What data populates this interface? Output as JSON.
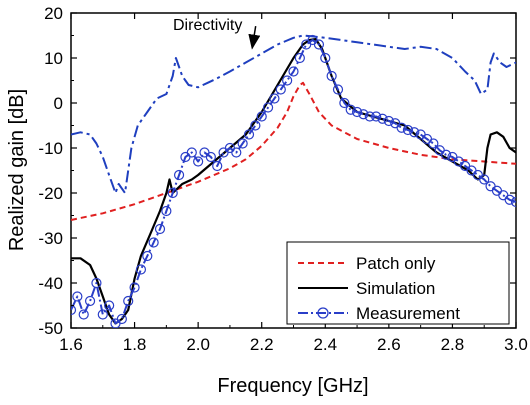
{
  "chart_data": {
    "type": "line",
    "title": "",
    "xlabel": "Frequency [GHz]",
    "ylabel": "Realized gain [dB]",
    "xlim": [
      1.6,
      3.0
    ],
    "ylim": [
      -50,
      20
    ],
    "xticks": [
      "1.6",
      "1.8",
      "2.0",
      "2.2",
      "2.4",
      "2.6",
      "2.8",
      "3.0"
    ],
    "yticks": [
      "-50",
      "-40",
      "-30",
      "-20",
      "-10",
      "0",
      "10",
      "20"
    ],
    "grid": false,
    "legend_position": "bottom-right",
    "annotation": {
      "text": "Directivity",
      "x": 2.03,
      "y": 16.2,
      "arrow_to_x": 2.17,
      "arrow_to_y": 12.2
    },
    "series": [
      {
        "name": "Directivity",
        "in_legend": false,
        "color": "#1f3fbf",
        "style": "dashdot",
        "x": [
          1.6,
          1.63,
          1.66,
          1.68,
          1.7,
          1.72,
          1.74,
          1.75,
          1.77,
          1.79,
          1.81,
          1.84,
          1.87,
          1.9,
          1.92,
          1.93,
          1.94,
          1.95,
          1.96,
          1.97,
          2.0,
          2.03,
          2.06,
          2.1,
          2.15,
          2.2,
          2.25,
          2.3,
          2.33,
          2.36,
          2.4,
          2.45,
          2.5,
          2.55,
          2.6,
          2.65,
          2.7,
          2.75,
          2.8,
          2.84,
          2.87,
          2.89,
          2.91,
          2.92,
          2.93,
          2.95,
          2.97,
          3.0
        ],
        "y": [
          -7,
          -6.5,
          -7,
          -9,
          -12,
          -16,
          -20,
          -18,
          -20,
          -10,
          -5,
          -2,
          1,
          2,
          6,
          10,
          8,
          6,
          5,
          4,
          3.5,
          4.5,
          5.5,
          7,
          9,
          11,
          13,
          14.5,
          15,
          14.8,
          14.5,
          14,
          13.5,
          13,
          12.5,
          12,
          12.5,
          12,
          10,
          7,
          5,
          2,
          3,
          9,
          11,
          9,
          8,
          9
        ]
      },
      {
        "name": "Patch only",
        "color": "#e02020",
        "style": "dashed",
        "x": [
          1.6,
          1.7,
          1.8,
          1.9,
          2.0,
          2.1,
          2.15,
          2.2,
          2.25,
          2.28,
          2.3,
          2.32,
          2.33,
          2.35,
          2.38,
          2.42,
          2.5,
          2.6,
          2.7,
          2.8,
          2.9,
          3.0
        ],
        "y": [
          -26,
          -24.5,
          -22.5,
          -20,
          -17.5,
          -14.5,
          -12.5,
          -9.5,
          -5.5,
          -2,
          1.5,
          4,
          4.5,
          2,
          -2,
          -5,
          -8,
          -10,
          -11.5,
          -12.5,
          -13,
          -13.5
        ]
      },
      {
        "name": "Simulation",
        "color": "#000000",
        "style": "solid",
        "x": [
          1.6,
          1.63,
          1.66,
          1.68,
          1.7,
          1.72,
          1.74,
          1.76,
          1.78,
          1.8,
          1.82,
          1.85,
          1.88,
          1.9,
          1.91,
          1.92,
          1.95,
          1.98,
          2.0,
          2.05,
          2.1,
          2.15,
          2.2,
          2.25,
          2.3,
          2.33,
          2.35,
          2.37,
          2.39,
          2.42,
          2.45,
          2.5,
          2.55,
          2.6,
          2.65,
          2.7,
          2.75,
          2.8,
          2.85,
          2.88,
          2.9,
          2.91,
          2.92,
          2.94,
          2.96,
          2.98,
          3.0
        ],
        "y": [
          -34.5,
          -34.5,
          -36,
          -39,
          -43,
          -47,
          -49,
          -48,
          -46,
          -39,
          -34,
          -29,
          -24,
          -20,
          -17,
          -20,
          -18,
          -17,
          -16,
          -13,
          -10,
          -7,
          -2,
          4,
          10,
          13,
          14,
          14.2,
          12,
          6,
          1,
          -2,
          -3,
          -4,
          -5,
          -8,
          -11,
          -13,
          -15,
          -17,
          -16,
          -10,
          -7,
          -6.5,
          -7.5,
          -10,
          -11
        ]
      },
      {
        "name": "Measurement",
        "color": "#2a3ec8",
        "style": "dashdot-circle",
        "x": [
          1.6,
          1.62,
          1.64,
          1.66,
          1.68,
          1.7,
          1.72,
          1.74,
          1.76,
          1.78,
          1.8,
          1.82,
          1.84,
          1.86,
          1.88,
          1.9,
          1.92,
          1.94,
          1.96,
          1.98,
          2.0,
          2.02,
          2.04,
          2.06,
          2.08,
          2.1,
          2.12,
          2.14,
          2.16,
          2.18,
          2.2,
          2.22,
          2.24,
          2.26,
          2.28,
          2.3,
          2.32,
          2.34,
          2.36,
          2.38,
          2.4,
          2.42,
          2.44,
          2.46,
          2.48,
          2.5,
          2.52,
          2.54,
          2.56,
          2.58,
          2.6,
          2.62,
          2.64,
          2.66,
          2.68,
          2.7,
          2.72,
          2.74,
          2.76,
          2.78,
          2.8,
          2.82,
          2.84,
          2.86,
          2.88,
          2.9,
          2.92,
          2.94,
          2.96,
          2.98,
          3.0
        ],
        "y": [
          -46,
          -43,
          -47,
          -44,
          -40,
          -47,
          -45,
          -49,
          -48,
          -44,
          -41,
          -37,
          -34,
          -31,
          -28,
          -24,
          -20,
          -16,
          -12,
          -11,
          -13,
          -11,
          -12,
          -14,
          -11,
          -10,
          -11,
          -9,
          -7,
          -5,
          -3,
          -1,
          1,
          3,
          5,
          7,
          10,
          13,
          14,
          13,
          10,
          6,
          3,
          0,
          -1.5,
          -2,
          -2.5,
          -3,
          -3,
          -3.5,
          -4,
          -4.5,
          -5.5,
          -6,
          -6.5,
          -7,
          -8,
          -9,
          -10.5,
          -11.5,
          -12,
          -13,
          -14,
          -15,
          -16,
          -17,
          -18.5,
          -19.5,
          -20.5,
          -21.5,
          -22
        ]
      }
    ]
  }
}
